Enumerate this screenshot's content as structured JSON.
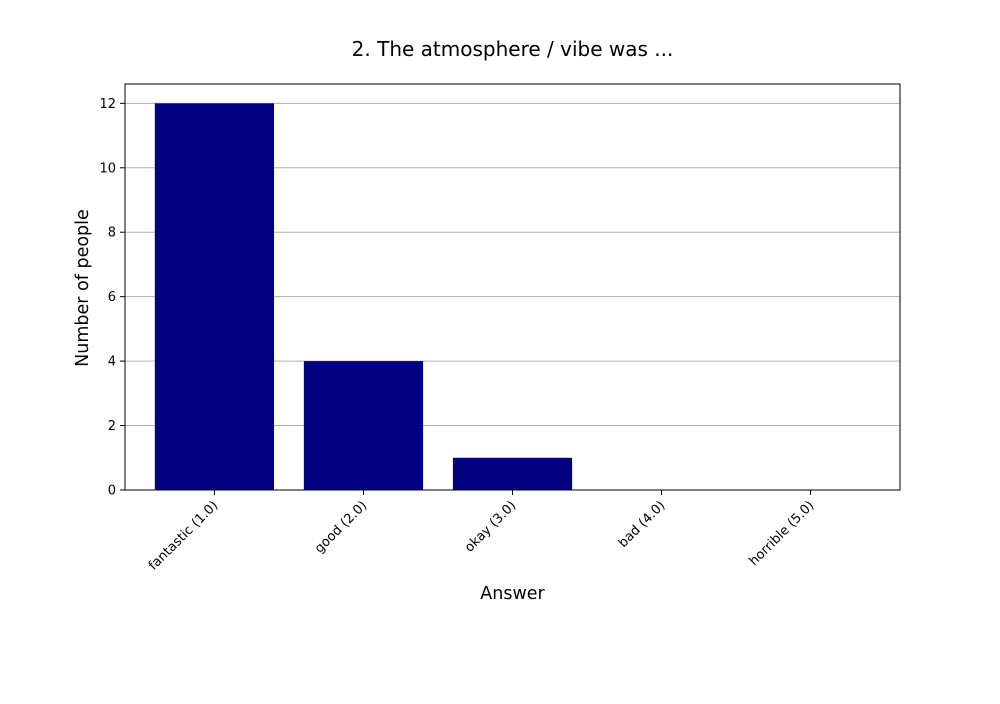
{
  "chart_data": {
    "type": "bar",
    "title": "2. The atmosphere / vibe was ...",
    "xlabel": "Answer",
    "ylabel": "Number of people",
    "categories": [
      "fantastic (1.0)",
      "good (2.0)",
      "okay (3.0)",
      "bad (4.0)",
      "horrible (5.0)"
    ],
    "values": [
      12,
      4,
      1,
      0,
      0
    ],
    "ylim": [
      0,
      12.6
    ],
    "yticks": [
      0,
      2,
      4,
      6,
      8,
      10,
      12
    ],
    "grid": "y-major",
    "bar_color": "#000080",
    "grid_color": "#b0b0b0"
  }
}
